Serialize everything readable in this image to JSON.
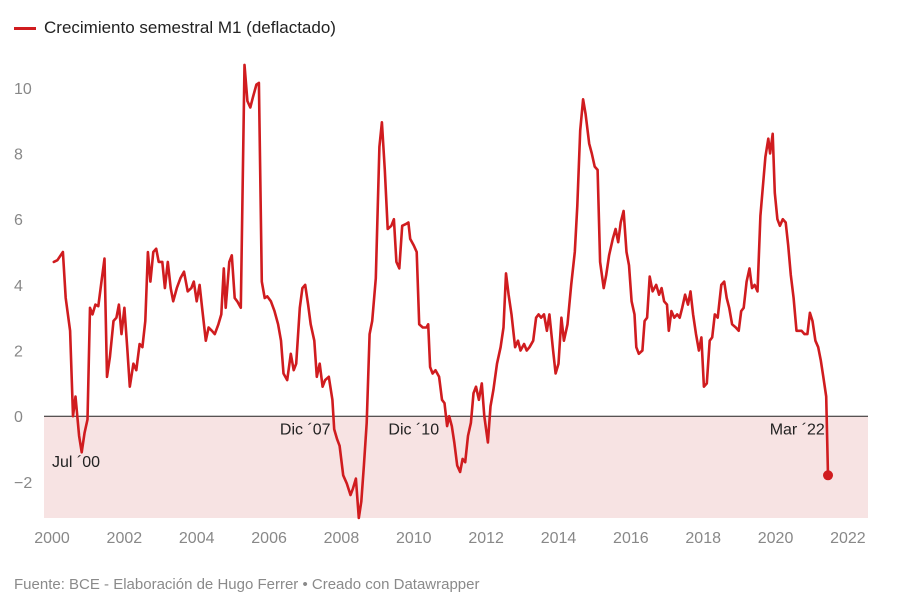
{
  "legend": {
    "label": "Crecimiento semestral M1 (deflactado)",
    "color": "#d01c1f"
  },
  "source": "Fuente: BCE - Elaboración de Hugo Ferrer • Creado con Datawrapper",
  "chart_data": {
    "type": "line",
    "xlim": [
      2000,
      2022.5
    ],
    "ylim": [
      -3.1,
      11
    ],
    "x_ticks": [
      2000,
      2002,
      2004,
      2006,
      2008,
      2010,
      2012,
      2014,
      2016,
      2018,
      2020,
      2022
    ],
    "y_ticks": [
      10,
      8,
      6,
      4,
      2,
      0,
      -2
    ],
    "negative_shading": true,
    "shading_color": "#f7e3e3",
    "series": [
      {
        "name": "Crecimiento semestral M1 (deflactado)",
        "color": "#d01c1f",
        "points": [
          [
            2000.05,
            4.7
          ],
          [
            2000.15,
            4.75
          ],
          [
            2000.3,
            5.0
          ],
          [
            2000.38,
            3.6
          ],
          [
            2000.5,
            2.6
          ],
          [
            2000.58,
            0.0
          ],
          [
            2000.65,
            0.6
          ],
          [
            2000.75,
            -0.6
          ],
          [
            2000.82,
            -1.1
          ],
          [
            2000.9,
            -0.5
          ],
          [
            2000.98,
            -0.1
          ],
          [
            2001.05,
            3.3
          ],
          [
            2001.12,
            3.1
          ],
          [
            2001.2,
            3.4
          ],
          [
            2001.28,
            3.35
          ],
          [
            2001.38,
            4.2
          ],
          [
            2001.45,
            4.8
          ],
          [
            2001.52,
            1.2
          ],
          [
            2001.6,
            1.8
          ],
          [
            2001.7,
            2.9
          ],
          [
            2001.78,
            3.0
          ],
          [
            2001.85,
            3.4
          ],
          [
            2001.92,
            2.5
          ],
          [
            2002.0,
            3.3
          ],
          [
            2002.08,
            2.1
          ],
          [
            2002.15,
            0.9
          ],
          [
            2002.25,
            1.6
          ],
          [
            2002.33,
            1.4
          ],
          [
            2002.42,
            2.2
          ],
          [
            2002.5,
            2.1
          ],
          [
            2002.58,
            2.9
          ],
          [
            2002.65,
            5.0
          ],
          [
            2002.72,
            4.1
          ],
          [
            2002.8,
            5.0
          ],
          [
            2002.88,
            5.1
          ],
          [
            2002.95,
            4.7
          ],
          [
            2003.05,
            4.7
          ],
          [
            2003.12,
            3.9
          ],
          [
            2003.2,
            4.7
          ],
          [
            2003.28,
            3.9
          ],
          [
            2003.35,
            3.5
          ],
          [
            2003.45,
            3.9
          ],
          [
            2003.55,
            4.2
          ],
          [
            2003.65,
            4.4
          ],
          [
            2003.75,
            3.8
          ],
          [
            2003.85,
            3.9
          ],
          [
            2003.92,
            4.1
          ],
          [
            2004.0,
            3.5
          ],
          [
            2004.08,
            4.0
          ],
          [
            2004.15,
            3.3
          ],
          [
            2004.25,
            2.3
          ],
          [
            2004.33,
            2.7
          ],
          [
            2004.42,
            2.6
          ],
          [
            2004.5,
            2.5
          ],
          [
            2004.6,
            2.8
          ],
          [
            2004.68,
            3.1
          ],
          [
            2004.75,
            4.5
          ],
          [
            2004.8,
            3.3
          ],
          [
            2004.9,
            4.7
          ],
          [
            2004.97,
            4.9
          ],
          [
            2005.05,
            3.6
          ],
          [
            2005.12,
            3.5
          ],
          [
            2005.22,
            3.3
          ],
          [
            2005.32,
            10.7
          ],
          [
            2005.4,
            9.6
          ],
          [
            2005.48,
            9.4
          ],
          [
            2005.55,
            9.7
          ],
          [
            2005.65,
            10.1
          ],
          [
            2005.72,
            10.15
          ],
          [
            2005.8,
            4.1
          ],
          [
            2005.88,
            3.6
          ],
          [
            2005.95,
            3.65
          ],
          [
            2006.05,
            3.5
          ],
          [
            2006.15,
            3.2
          ],
          [
            2006.25,
            2.8
          ],
          [
            2006.33,
            2.3
          ],
          [
            2006.4,
            1.3
          ],
          [
            2006.5,
            1.1
          ],
          [
            2006.6,
            1.9
          ],
          [
            2006.68,
            1.4
          ],
          [
            2006.75,
            1.6
          ],
          [
            2006.85,
            3.3
          ],
          [
            2006.92,
            3.9
          ],
          [
            2007.0,
            4.0
          ],
          [
            2007.08,
            3.4
          ],
          [
            2007.15,
            2.8
          ],
          [
            2007.25,
            2.3
          ],
          [
            2007.32,
            1.2
          ],
          [
            2007.4,
            1.6
          ],
          [
            2007.48,
            0.9
          ],
          [
            2007.55,
            1.1
          ],
          [
            2007.65,
            1.2
          ],
          [
            2007.75,
            0.5
          ],
          [
            2007.8,
            -0.4
          ],
          [
            2007.88,
            -0.7
          ],
          [
            2007.95,
            -0.9
          ],
          [
            2008.05,
            -1.8
          ],
          [
            2008.15,
            -2.05
          ],
          [
            2008.25,
            -2.4
          ],
          [
            2008.32,
            -2.2
          ],
          [
            2008.4,
            -1.9
          ],
          [
            2008.48,
            -3.1
          ],
          [
            2008.55,
            -2.6
          ],
          [
            2008.62,
            -1.5
          ],
          [
            2008.7,
            -0.2
          ],
          [
            2008.78,
            2.5
          ],
          [
            2008.85,
            2.9
          ],
          [
            2008.95,
            4.2
          ],
          [
            2009.05,
            8.2
          ],
          [
            2009.12,
            8.95
          ],
          [
            2009.2,
            7.5
          ],
          [
            2009.28,
            5.7
          ],
          [
            2009.38,
            5.8
          ],
          [
            2009.45,
            6.0
          ],
          [
            2009.52,
            4.7
          ],
          [
            2009.6,
            4.5
          ],
          [
            2009.68,
            5.8
          ],
          [
            2009.78,
            5.85
          ],
          [
            2009.85,
            5.9
          ],
          [
            2009.9,
            5.4
          ],
          [
            2010.0,
            5.2
          ],
          [
            2010.08,
            5.0
          ],
          [
            2010.15,
            2.8
          ],
          [
            2010.25,
            2.7
          ],
          [
            2010.35,
            2.7
          ],
          [
            2010.4,
            2.8
          ],
          [
            2010.45,
            1.5
          ],
          [
            2010.52,
            1.3
          ],
          [
            2010.6,
            1.4
          ],
          [
            2010.7,
            1.2
          ],
          [
            2010.78,
            0.5
          ],
          [
            2010.85,
            0.4
          ],
          [
            2010.92,
            -0.3
          ],
          [
            2010.98,
            0.0
          ],
          [
            2011.05,
            -0.3
          ],
          [
            2011.12,
            -0.8
          ],
          [
            2011.2,
            -1.5
          ],
          [
            2011.28,
            -1.7
          ],
          [
            2011.35,
            -1.3
          ],
          [
            2011.42,
            -1.4
          ],
          [
            2011.5,
            -0.6
          ],
          [
            2011.58,
            -0.2
          ],
          [
            2011.65,
            0.7
          ],
          [
            2011.72,
            0.9
          ],
          [
            2011.8,
            0.5
          ],
          [
            2011.88,
            1.0
          ],
          [
            2011.95,
            0.0
          ],
          [
            2012.05,
            -0.8
          ],
          [
            2012.12,
            0.3
          ],
          [
            2012.2,
            0.8
          ],
          [
            2012.3,
            1.6
          ],
          [
            2012.4,
            2.1
          ],
          [
            2012.48,
            2.7
          ],
          [
            2012.55,
            4.35
          ],
          [
            2012.62,
            3.7
          ],
          [
            2012.7,
            3.1
          ],
          [
            2012.8,
            2.1
          ],
          [
            2012.88,
            2.3
          ],
          [
            2012.95,
            2.0
          ],
          [
            2013.05,
            2.2
          ],
          [
            2013.12,
            2.0
          ],
          [
            2013.2,
            2.1
          ],
          [
            2013.3,
            2.3
          ],
          [
            2013.38,
            3.0
          ],
          [
            2013.45,
            3.1
          ],
          [
            2013.52,
            3.0
          ],
          [
            2013.6,
            3.1
          ],
          [
            2013.68,
            2.6
          ],
          [
            2013.75,
            3.1
          ],
          [
            2013.85,
            2.0
          ],
          [
            2013.92,
            1.3
          ],
          [
            2014.0,
            1.6
          ],
          [
            2014.08,
            3.0
          ],
          [
            2014.15,
            2.3
          ],
          [
            2014.25,
            2.8
          ],
          [
            2014.35,
            4.0
          ],
          [
            2014.45,
            5.0
          ],
          [
            2014.52,
            6.4
          ],
          [
            2014.6,
            8.7
          ],
          [
            2014.68,
            9.65
          ],
          [
            2014.75,
            9.2
          ],
          [
            2014.85,
            8.3
          ],
          [
            2014.92,
            8.0
          ],
          [
            2015.0,
            7.6
          ],
          [
            2015.08,
            7.5
          ],
          [
            2015.15,
            4.7
          ],
          [
            2015.25,
            3.9
          ],
          [
            2015.32,
            4.3
          ],
          [
            2015.4,
            4.9
          ],
          [
            2015.5,
            5.4
          ],
          [
            2015.58,
            5.7
          ],
          [
            2015.65,
            5.3
          ],
          [
            2015.72,
            5.9
          ],
          [
            2015.8,
            6.25
          ],
          [
            2015.88,
            5.0
          ],
          [
            2015.95,
            4.6
          ],
          [
            2016.02,
            3.5
          ],
          [
            2016.1,
            3.1
          ],
          [
            2016.15,
            2.1
          ],
          [
            2016.22,
            1.9
          ],
          [
            2016.32,
            2.0
          ],
          [
            2016.38,
            2.9
          ],
          [
            2016.45,
            3.0
          ],
          [
            2016.52,
            4.25
          ],
          [
            2016.6,
            3.8
          ],
          [
            2016.7,
            4.0
          ],
          [
            2016.78,
            3.7
          ],
          [
            2016.85,
            3.9
          ],
          [
            2016.92,
            3.5
          ],
          [
            2017.0,
            3.4
          ],
          [
            2017.05,
            2.6
          ],
          [
            2017.12,
            3.2
          ],
          [
            2017.2,
            3.0
          ],
          [
            2017.28,
            3.1
          ],
          [
            2017.35,
            3.0
          ],
          [
            2017.42,
            3.3
          ],
          [
            2017.5,
            3.7
          ],
          [
            2017.58,
            3.4
          ],
          [
            2017.65,
            3.8
          ],
          [
            2017.72,
            3.1
          ],
          [
            2017.8,
            2.5
          ],
          [
            2017.88,
            2.0
          ],
          [
            2017.95,
            2.4
          ],
          [
            2018.02,
            0.9
          ],
          [
            2018.1,
            1.0
          ],
          [
            2018.18,
            2.3
          ],
          [
            2018.25,
            2.4
          ],
          [
            2018.32,
            3.1
          ],
          [
            2018.4,
            3.0
          ],
          [
            2018.5,
            4.0
          ],
          [
            2018.58,
            4.1
          ],
          [
            2018.65,
            3.6
          ],
          [
            2018.72,
            3.3
          ],
          [
            2018.8,
            2.8
          ],
          [
            2018.9,
            2.7
          ],
          [
            2018.98,
            2.6
          ],
          [
            2019.05,
            3.2
          ],
          [
            2019.12,
            3.3
          ],
          [
            2019.2,
            4.1
          ],
          [
            2019.28,
            4.5
          ],
          [
            2019.35,
            3.9
          ],
          [
            2019.42,
            4.0
          ],
          [
            2019.5,
            3.8
          ],
          [
            2019.58,
            6.1
          ],
          [
            2019.65,
            7.0
          ],
          [
            2019.72,
            7.9
          ],
          [
            2019.8,
            8.45
          ],
          [
            2019.85,
            8.0
          ],
          [
            2019.92,
            8.6
          ],
          [
            2019.98,
            6.8
          ],
          [
            2020.05,
            6.0
          ],
          [
            2020.12,
            5.8
          ],
          [
            2020.2,
            6.0
          ],
          [
            2020.28,
            5.9
          ],
          [
            2020.35,
            5.2
          ],
          [
            2020.42,
            4.3
          ],
          [
            2020.5,
            3.6
          ],
          [
            2020.58,
            2.6
          ],
          [
            2020.65,
            2.6
          ],
          [
            2020.72,
            2.6
          ],
          [
            2020.8,
            2.5
          ],
          [
            2020.88,
            2.5
          ],
          [
            2020.95,
            3.15
          ],
          [
            2021.02,
            2.9
          ],
          [
            2021.1,
            2.3
          ],
          [
            2021.18,
            2.1
          ],
          [
            2021.25,
            1.7
          ],
          [
            2021.32,
            1.2
          ],
          [
            2021.4,
            0.6
          ],
          [
            2021.45,
            -1.8
          ]
        ]
      }
    ],
    "annotations": [
      {
        "text": "Jul ´00",
        "x": 2000.0,
        "y": -1.55,
        "anchor": "start"
      },
      {
        "text": "Dic ´07",
        "x": 2007.0,
        "y": -0.55,
        "anchor": "middle"
      },
      {
        "text": "Dic ´10",
        "x": 2010.0,
        "y": -0.55,
        "anchor": "middle"
      },
      {
        "text": "Mar ´22",
        "x": 2020.6,
        "y": -0.55,
        "anchor": "middle"
      }
    ],
    "end_marker": {
      "x": 2021.45,
      "y": -1.8
    }
  }
}
